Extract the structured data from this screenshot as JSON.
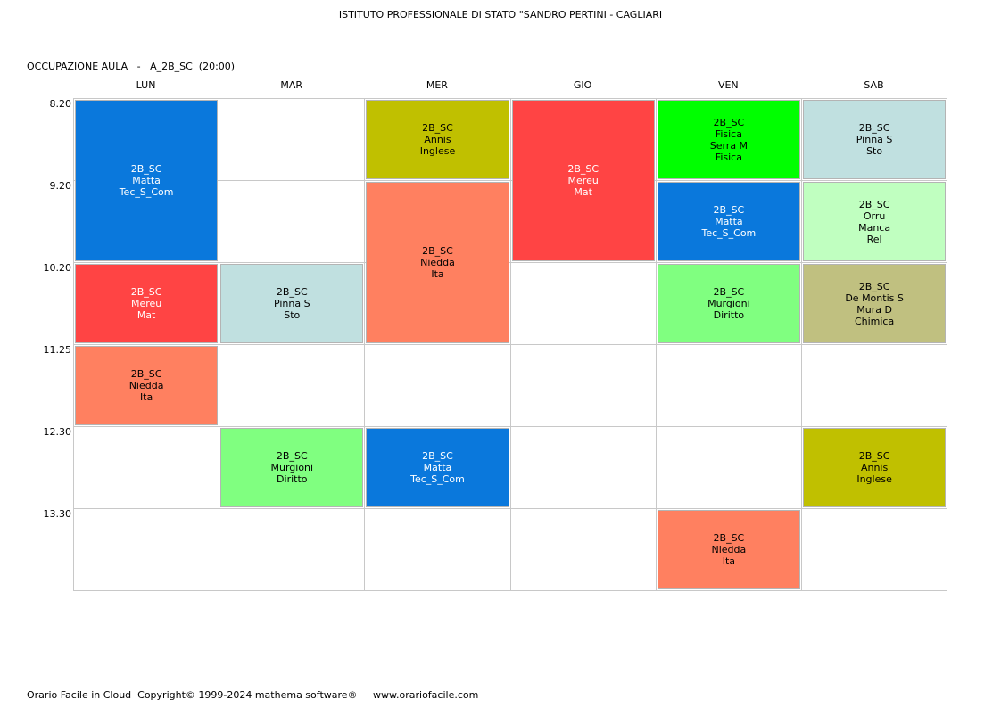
{
  "header": {
    "title": "ISTITUTO PROFESSIONALE DI STATO \"SANDRO PERTINI - CAGLIARI",
    "subtitle": "OCCUPAZIONE AULA   -   A_2B_SC  (20:00)"
  },
  "days": [
    "LUN",
    "MAR",
    "MER",
    "GIO",
    "VEN",
    "SAB"
  ],
  "times": [
    "8.20",
    "9.20",
    "10.20",
    "11.25",
    "12.30",
    "13.30"
  ],
  "lessons": [
    {
      "day": 0,
      "start": 0,
      "span": 2,
      "lines": [
        "2B_SC",
        "Matta",
        "Tec_S_Com"
      ],
      "bg": "#0a78dc",
      "fg": "#ffffff"
    },
    {
      "day": 0,
      "start": 2,
      "span": 1,
      "lines": [
        "2B_SC",
        "Mereu",
        "Mat"
      ],
      "bg": "#ff4444",
      "fg": "#ffffff"
    },
    {
      "day": 0,
      "start": 3,
      "span": 1,
      "lines": [
        "2B_SC",
        "Niedda",
        "Ita"
      ],
      "bg": "#ff8060",
      "fg": "#000000"
    },
    {
      "day": 1,
      "start": 2,
      "span": 1,
      "lines": [
        "2B_SC",
        "Pinna S",
        "Sto"
      ],
      "bg": "#c0e0e0",
      "fg": "#000000"
    },
    {
      "day": 1,
      "start": 4,
      "span": 1,
      "lines": [
        "2B_SC",
        "Murgioni",
        "Diritto"
      ],
      "bg": "#80ff80",
      "fg": "#000000"
    },
    {
      "day": 2,
      "start": 0,
      "span": 1,
      "lines": [
        "2B_SC",
        "Annis",
        "Inglese"
      ],
      "bg": "#c0c000",
      "fg": "#000000"
    },
    {
      "day": 2,
      "start": 1,
      "span": 2,
      "lines": [
        "2B_SC",
        "Niedda",
        "Ita"
      ],
      "bg": "#ff8060",
      "fg": "#000000"
    },
    {
      "day": 2,
      "start": 4,
      "span": 1,
      "lines": [
        "2B_SC",
        "Matta",
        "Tec_S_Com"
      ],
      "bg": "#0a78dc",
      "fg": "#ffffff"
    },
    {
      "day": 3,
      "start": 0,
      "span": 2,
      "lines": [
        "2B_SC",
        "Mereu",
        "Mat"
      ],
      "bg": "#ff4444",
      "fg": "#ffffff"
    },
    {
      "day": 4,
      "start": 0,
      "span": 1,
      "lines": [
        "2B_SC",
        "Fisica",
        "Serra M",
        "Fisica"
      ],
      "bg": "#00ff00",
      "fg": "#000000"
    },
    {
      "day": 4,
      "start": 1,
      "span": 1,
      "lines": [
        "2B_SC",
        "Matta",
        "Tec_S_Com"
      ],
      "bg": "#0a78dc",
      "fg": "#ffffff"
    },
    {
      "day": 4,
      "start": 2,
      "span": 1,
      "lines": [
        "2B_SC",
        "Murgioni",
        "Diritto"
      ],
      "bg": "#80ff80",
      "fg": "#000000"
    },
    {
      "day": 4,
      "start": 5,
      "span": 1,
      "lines": [
        "2B_SC",
        "Niedda",
        "Ita"
      ],
      "bg": "#ff8060",
      "fg": "#000000"
    },
    {
      "day": 5,
      "start": 0,
      "span": 1,
      "lines": [
        "2B_SC",
        "Pinna S",
        "Sto"
      ],
      "bg": "#c0e0e0",
      "fg": "#000000"
    },
    {
      "day": 5,
      "start": 1,
      "span": 1,
      "lines": [
        "2B_SC",
        "Orru",
        "Manca",
        "Rel"
      ],
      "bg": "#c0ffc0",
      "fg": "#000000"
    },
    {
      "day": 5,
      "start": 2,
      "span": 1,
      "lines": [
        "2B_SC",
        "De Montis S",
        "Mura D",
        "Chimica"
      ],
      "bg": "#c0c080",
      "fg": "#000000"
    },
    {
      "day": 5,
      "start": 4,
      "span": 1,
      "lines": [
        "2B_SC",
        "Annis",
        "Inglese"
      ],
      "bg": "#c0c000",
      "fg": "#000000"
    }
  ],
  "footer": {
    "text": "Orario Facile in Cloud  Copyright© 1999-2024 mathema software®     www.orariofacile.com"
  }
}
